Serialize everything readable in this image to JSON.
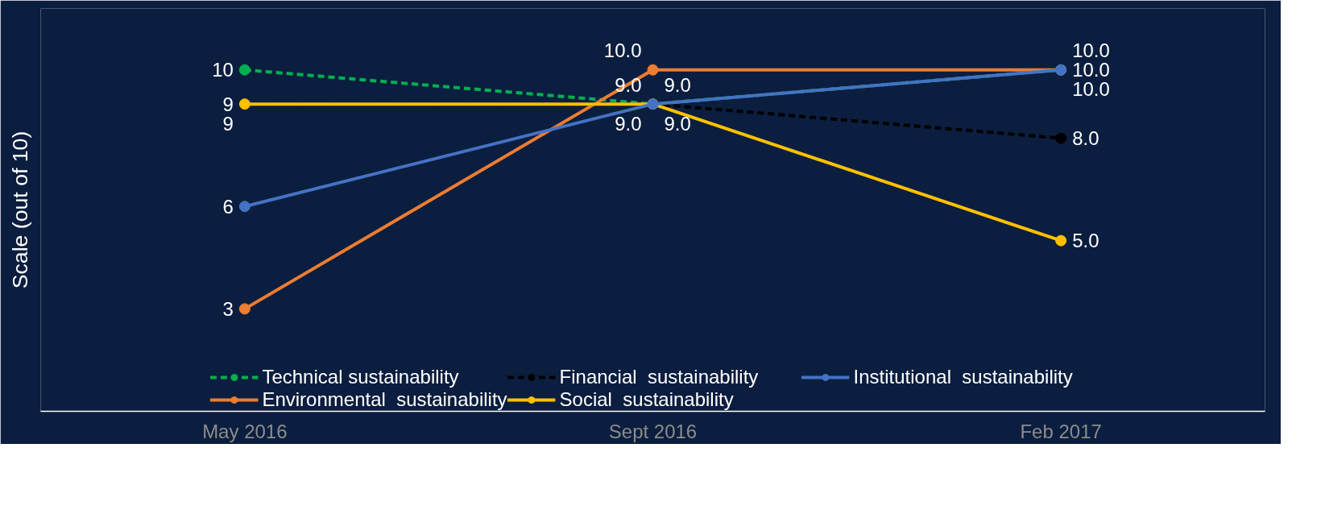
{
  "chart_data": {
    "type": "line",
    "ylabel": "Scale (out of 10)",
    "categories": [
      "May 2016",
      "Sept 2016",
      "Feb 2017"
    ],
    "tick_labels": "x",
    "marker": "circle",
    "legend": "bottom",
    "series": [
      {
        "name": "Technical sustainability",
        "color": "#00b050",
        "line_style": "dashed",
        "values": [
          10,
          9,
          10
        ],
        "value_labels": [
          "10",
          "9.0",
          "10.0"
        ]
      },
      {
        "name": "Environmental  sustainability",
        "color": "#ed7d31",
        "line_style": "solid",
        "values": [
          3,
          10,
          10
        ],
        "value_labels": [
          "3",
          "10.0",
          "10.0"
        ]
      },
      {
        "name": "Financial  sustainability",
        "color": "#000000",
        "line_style": "dashed",
        "values": [
          9,
          9,
          8
        ],
        "value_labels": [
          "9",
          "9.0",
          "8.0"
        ]
      },
      {
        "name": "Social  sustainability",
        "color": "#ffc000",
        "line_style": "solid",
        "values": [
          9,
          9,
          5
        ],
        "value_labels": [
          "9",
          "9.0",
          "5.0"
        ]
      },
      {
        "name": "Institutional  sustainability",
        "color": "#4472c4",
        "line_style": "solid",
        "values": [
          6,
          9,
          10
        ],
        "value_labels": [
          "6",
          "9.0",
          "10.0"
        ]
      }
    ]
  }
}
